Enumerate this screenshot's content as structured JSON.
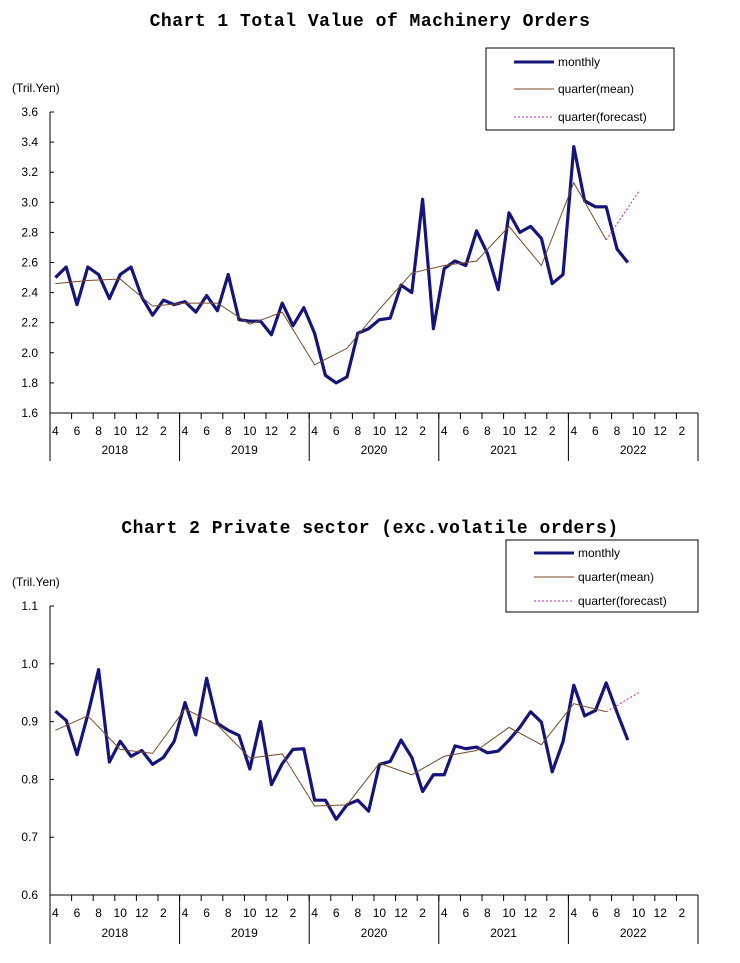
{
  "charts": [
    {
      "title": "Chart 1 Total Value of Machinery Orders",
      "unit": "(Tril.Yen)",
      "legend": [
        "monthly",
        "quarter(mean)",
        "quarter(forecast)"
      ]
    },
    {
      "title": "Chart 2 Private sector (exc.volatile orders)",
      "unit": "(Tril.Yen)",
      "legend": [
        "monthly",
        "quarter(mean)",
        "quarter(forecast)"
      ]
    }
  ],
  "chart_data": [
    {
      "type": "line",
      "title": "Chart 1 Total Value of Machinery Orders",
      "ylabel": "(Tril.Yen)",
      "ylim": [
        1.6,
        3.6
      ],
      "yticks": [
        "1.6",
        "1.8",
        "2.0",
        "2.2",
        "2.4",
        "2.6",
        "2.8",
        "3.0",
        "3.2",
        "3.4",
        "3.6"
      ],
      "month_ticks": [
        "4",
        "6",
        "8",
        "10",
        "12",
        "2",
        "4",
        "6",
        "8",
        "10",
        "12",
        "2",
        "4",
        "6",
        "8",
        "10",
        "12",
        "2",
        "4",
        "6",
        "8",
        "10",
        "12",
        "2",
        "4",
        "6",
        "8",
        "10",
        "12",
        "2"
      ],
      "year_labels": [
        "2018",
        "2019",
        "2020",
        "2021",
        "2022"
      ],
      "grid": false,
      "legend_position": "top-right",
      "colors": {
        "monthly": "#14147a",
        "quarter_mean": "#7a4a2a",
        "quarter_forecast": "#c020c0"
      },
      "series": [
        {
          "name": "monthly",
          "start": "2018-04",
          "values": [
            2.5,
            2.57,
            2.32,
            2.57,
            2.52,
            2.36,
            2.52,
            2.57,
            2.37,
            2.25,
            2.35,
            2.32,
            2.34,
            2.27,
            2.38,
            2.28,
            2.52,
            2.22,
            2.21,
            2.21,
            2.12,
            2.33,
            2.18,
            2.3,
            2.13,
            1.85,
            1.8,
            1.84,
            2.13,
            2.16,
            2.22,
            2.23,
            2.45,
            2.4,
            3.02,
            2.16,
            2.56,
            2.61,
            2.58,
            2.81,
            2.66,
            2.42,
            2.93,
            2.8,
            2.84,
            2.76,
            2.46,
            2.52,
            3.37,
            3.01,
            2.97,
            2.97,
            2.69,
            2.6
          ]
        },
        {
          "name": "quarter(mean)",
          "x": [
            0,
            3,
            6,
            9,
            12,
            15,
            18,
            21,
            24,
            27,
            30,
            33,
            36,
            39,
            42,
            45,
            48,
            51
          ],
          "values": [
            2.46,
            2.48,
            2.49,
            2.31,
            2.33,
            2.33,
            2.19,
            2.27,
            1.92,
            2.03,
            2.29,
            2.53,
            2.58,
            2.61,
            2.84,
            2.58,
            3.13,
            2.75
          ]
        },
        {
          "name": "quarter(forecast)",
          "x": [
            51,
            54
          ],
          "values": [
            2.75,
            3.07
          ]
        }
      ]
    },
    {
      "type": "line",
      "title": "Chart 2 Private sector (exc.volatile orders)",
      "ylabel": "(Tril.Yen)",
      "ylim": [
        0.6,
        1.1
      ],
      "yticks": [
        "0.6",
        "0.7",
        "0.8",
        "0.9",
        "1.0",
        "1.1"
      ],
      "month_ticks": [
        "4",
        "6",
        "8",
        "10",
        "12",
        "2",
        "4",
        "6",
        "8",
        "10",
        "12",
        "2",
        "4",
        "6",
        "8",
        "10",
        "12",
        "2",
        "4",
        "6",
        "8",
        "10",
        "12",
        "2",
        "4",
        "6",
        "8",
        "10",
        "12",
        "2"
      ],
      "year_labels": [
        "2018",
        "2019",
        "2020",
        "2021",
        "2022"
      ],
      "grid": false,
      "legend_position": "top-right",
      "colors": {
        "monthly": "#14147a",
        "quarter_mean": "#7a4a2a",
        "quarter_forecast": "#c020c0"
      },
      "series": [
        {
          "name": "monthly",
          "start": "2018-04",
          "values": [
            0.918,
            0.902,
            0.843,
            0.912,
            0.99,
            0.83,
            0.866,
            0.84,
            0.85,
            0.826,
            0.838,
            0.866,
            0.933,
            0.877,
            0.975,
            0.897,
            0.885,
            0.876,
            0.818,
            0.9,
            0.791,
            0.827,
            0.852,
            0.853,
            0.764,
            0.764,
            0.731,
            0.756,
            0.764,
            0.745,
            0.826,
            0.831,
            0.868,
            0.838,
            0.779,
            0.808,
            0.808,
            0.858,
            0.853,
            0.856,
            0.846,
            0.849,
            0.868,
            0.89,
            0.917,
            0.899,
            0.813,
            0.865,
            0.963,
            0.91,
            0.919,
            0.967,
            0.916,
            0.868
          ]
        },
        {
          "name": "quarter(mean)",
          "x": [
            0,
            3,
            6,
            9,
            12,
            15,
            18,
            21,
            24,
            27,
            30,
            33,
            36,
            39,
            42,
            45,
            48,
            51
          ],
          "values": [
            0.885,
            0.91,
            0.852,
            0.845,
            0.922,
            0.894,
            0.837,
            0.844,
            0.754,
            0.756,
            0.828,
            0.808,
            0.84,
            0.85,
            0.89,
            0.86,
            0.931,
            0.917
          ]
        },
        {
          "name": "quarter(forecast)",
          "x": [
            51,
            54
          ],
          "values": [
            0.917,
            0.95
          ]
        }
      ]
    }
  ]
}
